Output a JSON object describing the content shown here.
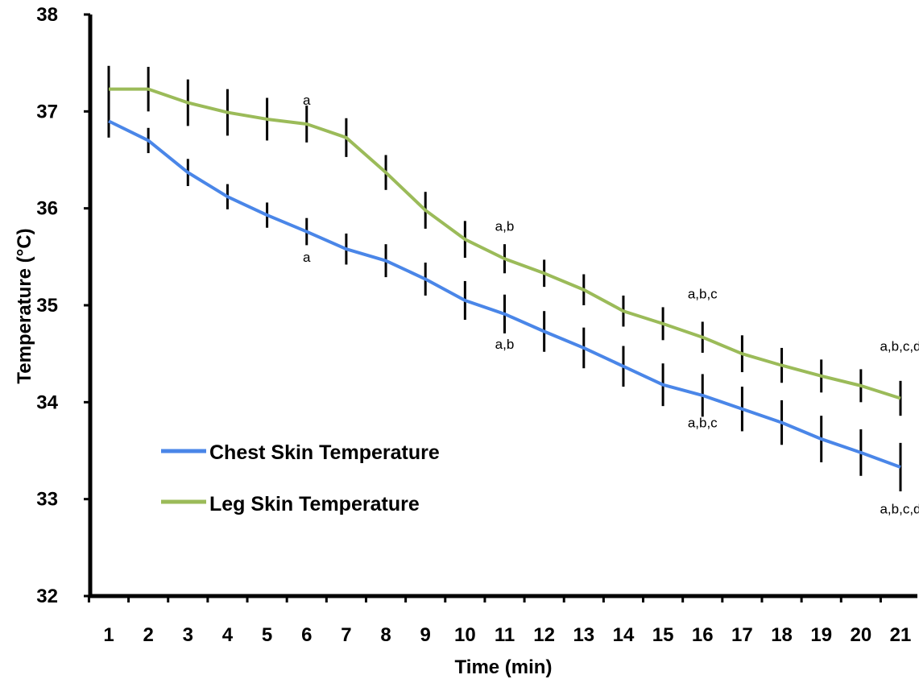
{
  "chart_data": {
    "type": "line",
    "title": "",
    "xlabel": "Time (min)",
    "ylabel": "Temperature (°C)",
    "x": [
      1,
      2,
      3,
      4,
      5,
      6,
      7,
      8,
      9,
      10,
      11,
      12,
      13,
      14,
      15,
      16,
      17,
      18,
      19,
      20,
      21
    ],
    "xticks": [
      "1",
      "2",
      "3",
      "4",
      "5",
      "6",
      "7",
      "8",
      "9",
      "10",
      "11",
      "12",
      "13",
      "14",
      "15",
      "16",
      "17",
      "18",
      "19",
      "20",
      "21"
    ],
    "ylim": [
      32,
      38
    ],
    "yticks": [
      "32",
      "33",
      "34",
      "35",
      "36",
      "37",
      "38"
    ],
    "grid": false,
    "legend_position": "lower-left",
    "series": [
      {
        "name": "Chest Skin Temperature",
        "color": "#4a86e8",
        "values": [
          36.9,
          36.7,
          36.37,
          36.12,
          35.93,
          35.76,
          35.58,
          35.46,
          35.27,
          35.05,
          34.91,
          34.73,
          34.56,
          34.37,
          34.18,
          34.07,
          33.93,
          33.79,
          33.62,
          33.48,
          33.33
        ],
        "error": [
          0.17,
          0.13,
          0.14,
          0.13,
          0.13,
          0.14,
          0.16,
          0.17,
          0.17,
          0.2,
          0.2,
          0.21,
          0.21,
          0.21,
          0.22,
          0.22,
          0.23,
          0.23,
          0.24,
          0.24,
          0.25
        ]
      },
      {
        "name": "Leg Skin Temperature",
        "color": "#9bbb59",
        "values": [
          37.23,
          37.23,
          37.09,
          36.99,
          36.92,
          36.87,
          36.73,
          36.37,
          35.98,
          35.68,
          35.48,
          35.33,
          35.16,
          34.94,
          34.81,
          34.67,
          34.5,
          34.38,
          34.27,
          34.17,
          34.04
        ],
        "error": [
          0.24,
          0.23,
          0.24,
          0.24,
          0.22,
          0.19,
          0.2,
          0.18,
          0.19,
          0.19,
          0.15,
          0.14,
          0.16,
          0.16,
          0.17,
          0.16,
          0.19,
          0.18,
          0.17,
          0.17,
          0.18
        ]
      }
    ],
    "annotations": [
      {
        "text": "a",
        "x": 6,
        "y": 37.12
      },
      {
        "text": "a,b",
        "x": 11,
        "y": 35.82
      },
      {
        "text": "a,b,c",
        "x": 16,
        "y": 35.12
      },
      {
        "text": "a,b,c,d",
        "x": 21,
        "y": 34.58
      },
      {
        "text": "a",
        "x": 6,
        "y": 35.5
      },
      {
        "text": "a,b",
        "x": 11,
        "y": 34.6
      },
      {
        "text": "a,b,c",
        "x": 16,
        "y": 33.79
      },
      {
        "text": "a,b,c,d",
        "x": 21,
        "y": 32.9
      }
    ]
  }
}
